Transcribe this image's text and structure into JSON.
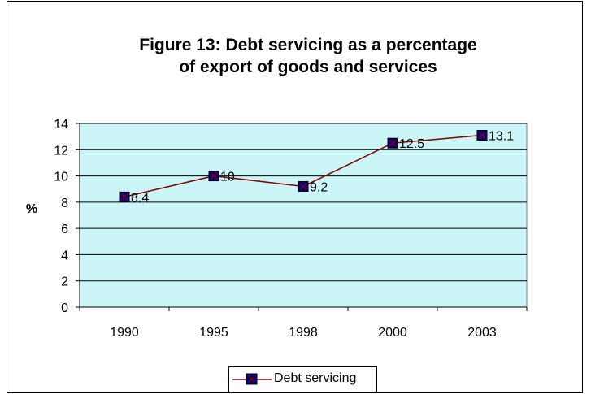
{
  "chart_data": {
    "type": "line",
    "title_lines": [
      "Figure 13: Debt servicing as a percentage",
      "of export of goods and services"
    ],
    "categories": [
      "1990",
      "1995",
      "1998",
      "2000",
      "2003"
    ],
    "series": [
      {
        "name": "Debt servicing",
        "values": [
          8.4,
          10,
          9.2,
          12.5,
          13.1
        ],
        "data_labels": [
          "8.4",
          "10",
          "9.2",
          "12.5",
          "13.1"
        ]
      }
    ],
    "xlabel": "",
    "ylabel": "%",
    "ylim": [
      0,
      14
    ],
    "yticks": [
      "0",
      "2",
      "4",
      "6",
      "8",
      "10",
      "12",
      "14"
    ],
    "grid": true,
    "legend_position": "bottom",
    "colors": {
      "plot_background": "#ccf5f8",
      "line": "#800000",
      "marker_fill": "#000080",
      "marker_cross": "#800000"
    }
  }
}
